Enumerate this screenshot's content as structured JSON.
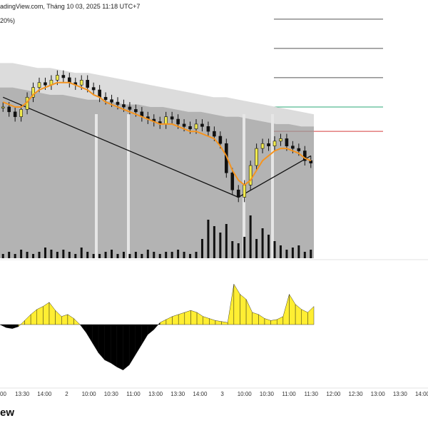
{
  "header": {
    "watermark": "adingView.com, Tháng 10 03, 2025 11:18 UTC+7",
    "param_fragment": "20%)"
  },
  "brand": {
    "label": "ew"
  },
  "colors": {
    "background": "#ffffff",
    "candle_up": "#f1ea4d",
    "candle_down": "#111111",
    "volume": "#111111",
    "ma_line": "#f5941f",
    "trend_line": "#111111",
    "cloud_fill": "#9a9a9a",
    "osc_positive": "#ffee33",
    "osc_negative": "#000000",
    "level_line": "#555555",
    "green_level": "#2aa876",
    "red_level": "#d43d3d"
  },
  "chart_data": [
    {
      "type": "candlestick",
      "title": "",
      "xlabel": "",
      "ylabel": "",
      "x_tick_labels": [
        "00",
        "13:30",
        "14:00",
        "2",
        "10:00",
        "10:30",
        "11:00",
        "13:00",
        "13:30",
        "14:00",
        "3",
        "10:00",
        "10:30",
        "11:00",
        "11:30",
        "12:00",
        "12:30",
        "13:00",
        "13:30",
        "14:00"
      ],
      "ylim": [
        0,
        100
      ],
      "close": [
        62,
        60,
        58,
        61,
        66,
        70,
        72,
        71,
        73,
        75,
        74,
        72,
        71,
        73,
        70,
        69,
        66,
        65,
        64,
        63,
        62,
        61,
        60,
        58,
        57,
        56,
        55,
        58,
        57,
        55,
        54,
        53,
        55,
        54,
        52,
        50,
        47,
        35,
        28,
        25,
        30,
        38,
        45,
        47,
        46,
        48,
        49,
        46,
        45,
        44,
        40,
        39
      ],
      "ma": [
        64,
        63,
        62,
        62,
        64,
        67,
        69,
        70,
        71,
        72,
        72,
        72,
        71,
        70,
        69,
        67,
        66,
        64,
        63,
        62,
        61,
        60,
        59,
        58,
        57,
        56,
        55,
        55,
        55,
        54,
        53,
        52,
        52,
        51,
        50,
        49,
        46,
        42,
        36,
        32,
        30,
        32,
        36,
        40,
        42,
        44,
        45,
        45,
        44,
        43,
        41,
        40
      ],
      "cloud_upper": [
        80,
        80,
        79,
        78,
        78,
        77,
        76,
        76,
        75,
        74,
        73,
        72,
        71,
        70,
        69,
        68,
        67,
        66,
        66,
        65,
        64,
        63,
        62,
        61,
        60,
        59
      ],
      "cloud_lower": [
        70,
        70,
        69,
        68,
        67,
        67,
        66,
        65,
        65,
        64,
        63,
        63,
        62,
        62,
        61,
        60,
        60,
        59,
        58,
        58,
        57,
        56,
        55,
        55,
        54,
        54
      ],
      "trend_line": [
        [
          0,
          66
        ],
        [
          39,
          25
        ],
        [
          51,
          42
        ]
      ],
      "volume": [
        2,
        3,
        2,
        4,
        3,
        2,
        3,
        5,
        4,
        3,
        4,
        3,
        2,
        5,
        3,
        2,
        2,
        3,
        4,
        2,
        3,
        2,
        3,
        2,
        4,
        3,
        2,
        3,
        3,
        4,
        3,
        2,
        3,
        9,
        18,
        15,
        12,
        16,
        8,
        7,
        10,
        20,
        9,
        14,
        11,
        8,
        6,
        4,
        5,
        6,
        3,
        4
      ],
      "levels": [
        {
          "value": 98,
          "style": "neutral"
        },
        {
          "value": 86,
          "style": "neutral"
        },
        {
          "value": 74,
          "style": "neutral"
        },
        {
          "value": 62,
          "style": "green"
        },
        {
          "value": 52,
          "style": "red"
        }
      ]
    },
    {
      "type": "area",
      "title": "",
      "ylim": [
        -60,
        60
      ],
      "values": [
        0,
        -3,
        -4,
        -2,
        4,
        10,
        15,
        18,
        22,
        14,
        8,
        10,
        6,
        0,
        -8,
        -18,
        -28,
        -35,
        -38,
        -42,
        -45,
        -40,
        -30,
        -20,
        -10,
        -5,
        2,
        5,
        8,
        10,
        12,
        14,
        12,
        8,
        6,
        4,
        3,
        2,
        40,
        30,
        25,
        12,
        10,
        6,
        4,
        5,
        8,
        30,
        20,
        15,
        12,
        18
      ]
    }
  ]
}
